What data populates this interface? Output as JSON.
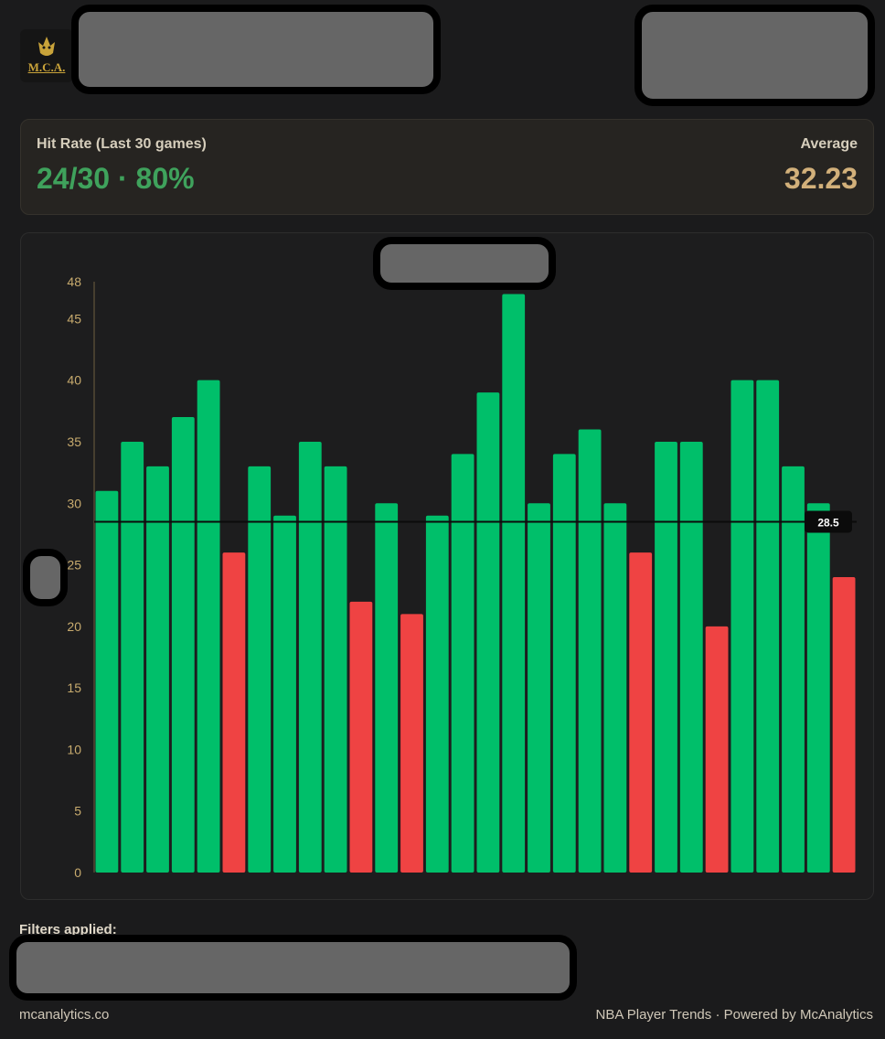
{
  "brand": {
    "logo_text": "M.C.A.",
    "logo_icon": "lion-icon"
  },
  "stats": {
    "hit_rate_label": "Hit Rate (Last 30 games)",
    "hit_rate_value": "24/30 · 80%",
    "average_label": "Average",
    "average_value": "32.23"
  },
  "colors": {
    "hit": "#00bf6a",
    "miss": "#ef4343",
    "hit_text": "#3fa25c",
    "avg_text": "#d2b07a",
    "axis_tick": "#c8ab6e"
  },
  "chart_data": {
    "type": "bar",
    "values": [
      31,
      35,
      33,
      37,
      40,
      26,
      33,
      29,
      35,
      33,
      22,
      30,
      21,
      29,
      34,
      39,
      47,
      30,
      34,
      36,
      30,
      26,
      35,
      35,
      20,
      40,
      40,
      33,
      30,
      24
    ],
    "hit": [
      true,
      true,
      true,
      true,
      true,
      false,
      true,
      true,
      true,
      true,
      false,
      true,
      false,
      true,
      true,
      true,
      true,
      true,
      true,
      true,
      true,
      false,
      true,
      true,
      false,
      true,
      true,
      true,
      true,
      false
    ],
    "threshold": 28.5,
    "threshold_label": "28.5",
    "ylim": [
      0,
      48
    ],
    "yticks": [
      0,
      5,
      10,
      15,
      20,
      25,
      30,
      35,
      40,
      45,
      48
    ],
    "grid": false,
    "xlabel": "",
    "ylabel": ""
  },
  "filters": {
    "label": "Filters applied:"
  },
  "footer": {
    "left": "mcanalytics.co",
    "right": "NBA Player Trends · Powered by McAnalytics"
  }
}
